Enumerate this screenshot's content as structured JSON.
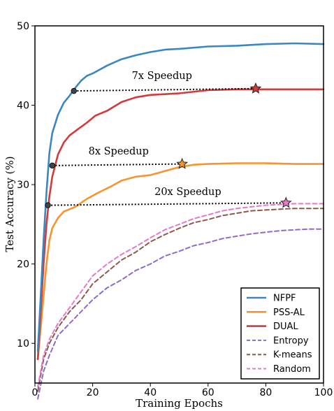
{
  "chart_data": {
    "type": "line",
    "xlabel": "Training Epochs",
    "ylabel": "Test Accuracy (%)",
    "xlim": [
      0,
      100
    ],
    "ylim": [
      5,
      50
    ],
    "xticks": [
      "0",
      "20",
      "40",
      "60",
      "80",
      "100"
    ],
    "yticks": [
      "10",
      "20",
      "30",
      "40",
      "50"
    ],
    "grid": false,
    "legend_position": "bottom-right",
    "series": [
      {
        "name": "NFPF",
        "color": "#3a87c2",
        "dash": "solid",
        "points": [
          [
            1,
            9
          ],
          [
            2,
            16
          ],
          [
            3,
            23
          ],
          [
            4,
            29
          ],
          [
            5,
            34
          ],
          [
            6,
            36.5
          ],
          [
            8,
            38.8
          ],
          [
            10,
            40.3
          ],
          [
            12,
            41.2
          ],
          [
            14,
            42.2
          ],
          [
            16,
            43.1
          ],
          [
            18,
            43.7
          ],
          [
            20,
            44
          ],
          [
            25,
            45
          ],
          [
            30,
            45.8
          ],
          [
            35,
            46.3
          ],
          [
            40,
            46.7
          ],
          [
            45,
            47
          ],
          [
            50,
            47.1
          ],
          [
            60,
            47.4
          ],
          [
            70,
            47.5
          ],
          [
            80,
            47.7
          ],
          [
            90,
            47.8
          ],
          [
            100,
            47.7
          ]
        ]
      },
      {
        "name": "PSS-AL",
        "color": "#f7942b",
        "dash": "solid",
        "points": [
          [
            1,
            8
          ],
          [
            2,
            12
          ],
          [
            3,
            16
          ],
          [
            4,
            20
          ],
          [
            5,
            23
          ],
          [
            6,
            24.5
          ],
          [
            8,
            25.8
          ],
          [
            10,
            26.6
          ],
          [
            14,
            27.2
          ],
          [
            18,
            28.2
          ],
          [
            22,
            29
          ],
          [
            26,
            29.7
          ],
          [
            30,
            30.5
          ],
          [
            35,
            31
          ],
          [
            40,
            31.2
          ],
          [
            45,
            31.7
          ],
          [
            50,
            32.2
          ],
          [
            55,
            32.5
          ],
          [
            60,
            32.6
          ],
          [
            70,
            32.7
          ],
          [
            80,
            32.7
          ],
          [
            90,
            32.6
          ],
          [
            100,
            32.6
          ]
        ]
      },
      {
        "name": "DUAL",
        "color": "#d33b3b",
        "dash": "solid",
        "points": [
          [
            1,
            8
          ],
          [
            2,
            14
          ],
          [
            3,
            20
          ],
          [
            4,
            25
          ],
          [
            5,
            28.5
          ],
          [
            6,
            31
          ],
          [
            8,
            33.8
          ],
          [
            10,
            35.3
          ],
          [
            12,
            36.2
          ],
          [
            15,
            37
          ],
          [
            18,
            37.8
          ],
          [
            21,
            38.7
          ],
          [
            25,
            39.3
          ],
          [
            30,
            40.4
          ],
          [
            35,
            41
          ],
          [
            40,
            41.3
          ],
          [
            45,
            41.4
          ],
          [
            50,
            41.5
          ],
          [
            60,
            41.9
          ],
          [
            70,
            42
          ],
          [
            80,
            42
          ],
          [
            90,
            42
          ],
          [
            100,
            42
          ]
        ]
      },
      {
        "name": "Entropy",
        "color": "#8f6bc9",
        "dash": "dashed",
        "points": [
          [
            1,
            3
          ],
          [
            3,
            6.5
          ],
          [
            5,
            8.5
          ],
          [
            8,
            11
          ],
          [
            12,
            12.5
          ],
          [
            16,
            14
          ],
          [
            20,
            15.5
          ],
          [
            25,
            17
          ],
          [
            30,
            18
          ],
          [
            35,
            19.2
          ],
          [
            40,
            20
          ],
          [
            45,
            21
          ],
          [
            50,
            21.6
          ],
          [
            55,
            22.3
          ],
          [
            60,
            22.7
          ],
          [
            65,
            23.2
          ],
          [
            70,
            23.5
          ],
          [
            75,
            23.8
          ],
          [
            80,
            24
          ],
          [
            85,
            24.2
          ],
          [
            90,
            24.3
          ],
          [
            95,
            24.4
          ],
          [
            100,
            24.4
          ]
        ]
      },
      {
        "name": "K-means",
        "color": "#8b5a4c",
        "dash": "dashed",
        "points": [
          [
            1,
            4
          ],
          [
            3,
            8
          ],
          [
            5,
            10
          ],
          [
            8,
            12
          ],
          [
            12,
            14
          ],
          [
            16,
            15.5
          ],
          [
            20,
            17.5
          ],
          [
            25,
            19
          ],
          [
            30,
            20.5
          ],
          [
            35,
            21.5
          ],
          [
            40,
            22.8
          ],
          [
            45,
            23.7
          ],
          [
            50,
            24.5
          ],
          [
            55,
            25.2
          ],
          [
            60,
            25.6
          ],
          [
            65,
            26.1
          ],
          [
            70,
            26.4
          ],
          [
            75,
            26.7
          ],
          [
            80,
            26.8
          ],
          [
            85,
            26.9
          ],
          [
            90,
            27
          ],
          [
            95,
            27
          ],
          [
            100,
            27
          ]
        ]
      },
      {
        "name": "Random",
        "color": "#e57ac8",
        "dash": "dashed",
        "points": [
          [
            1,
            4.5
          ],
          [
            3,
            8.5
          ],
          [
            5,
            10.5
          ],
          [
            8,
            12.5
          ],
          [
            12,
            14.5
          ],
          [
            16,
            16.5
          ],
          [
            20,
            18.5
          ],
          [
            25,
            20
          ],
          [
            30,
            21.2
          ],
          [
            35,
            22.2
          ],
          [
            40,
            23.3
          ],
          [
            45,
            24.3
          ],
          [
            50,
            25
          ],
          [
            55,
            25.7
          ],
          [
            60,
            26.2
          ],
          [
            65,
            26.7
          ],
          [
            70,
            27
          ],
          [
            75,
            27.2
          ],
          [
            80,
            27.4
          ],
          [
            85,
            27.5
          ],
          [
            90,
            27.6
          ],
          [
            95,
            27.6
          ],
          [
            100,
            27.6
          ]
        ]
      }
    ],
    "annotations": [
      {
        "label": "7x Speedup",
        "from": [
          13.5,
          41.8
        ],
        "to": [
          76.5,
          42.1
        ],
        "star_color": "#d33b3b",
        "label_at": [
          44,
          43.3
        ]
      },
      {
        "label": "8x Speedup",
        "from": [
          6,
          32.4
        ],
        "to": [
          51,
          32.6
        ],
        "star_color": "#f7942b",
        "label_at": [
          29,
          33.8
        ]
      },
      {
        "label": "20x Speedup",
        "from": [
          4.5,
          27.4
        ],
        "to": [
          87,
          27.7
        ],
        "star_color": "#e57ac8",
        "label_at": [
          53,
          28.7
        ]
      }
    ]
  }
}
